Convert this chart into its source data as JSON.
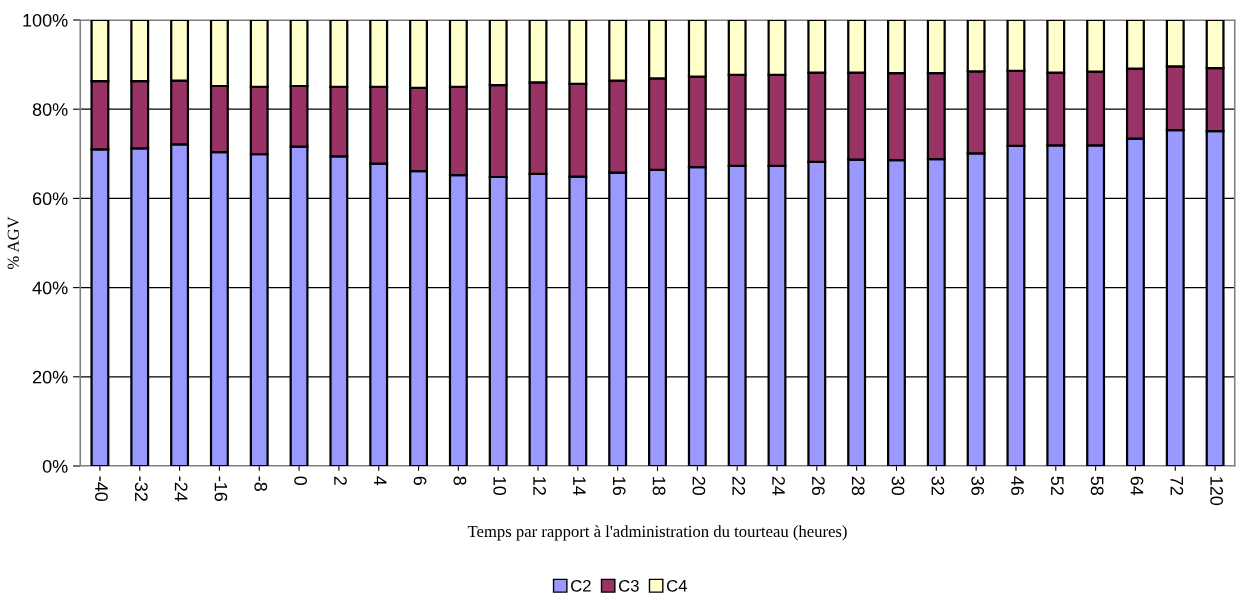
{
  "chart_data": {
    "type": "bar",
    "stacked": true,
    "xlabel": "Temps par rapport à l'administration du tourteau (heures)",
    "ylabel": "% AGV",
    "categories": [
      "-40",
      "-32",
      "-24",
      "-16",
      "-8",
      "0",
      "2",
      "4",
      "6",
      "8",
      "10",
      "12",
      "14",
      "16",
      "18",
      "20",
      "22",
      "24",
      "26",
      "28",
      "30",
      "32",
      "36",
      "46",
      "52",
      "58",
      "64",
      "72",
      "120"
    ],
    "series": [
      {
        "name": "C2",
        "color": "#9999ff",
        "values": [
          71.0,
          71.2,
          72.1,
          70.4,
          69.9,
          71.6,
          69.4,
          67.8,
          66.1,
          65.2,
          64.8,
          65.5,
          64.9,
          65.8,
          66.4,
          67.0,
          67.3,
          67.3,
          68.2,
          68.7,
          68.6,
          68.8,
          70.1,
          71.8,
          71.9,
          71.9,
          73.4,
          75.3,
          75.1
        ]
      },
      {
        "name": "C3",
        "color": "#993366",
        "values": [
          15.3,
          15.1,
          14.3,
          14.8,
          15.1,
          13.6,
          15.6,
          17.2,
          18.7,
          19.8,
          20.6,
          20.5,
          20.8,
          20.6,
          20.5,
          20.3,
          20.4,
          20.4,
          20.0,
          19.5,
          19.5,
          19.3,
          18.4,
          16.8,
          16.3,
          16.5,
          15.7,
          14.3,
          14.1
        ]
      },
      {
        "name": "C4",
        "color": "#ffffcc",
        "values": [
          13.7,
          13.7,
          13.6,
          14.8,
          15.0,
          14.8,
          15.0,
          15.0,
          15.2,
          15.0,
          14.6,
          14.0,
          14.3,
          13.6,
          13.1,
          12.7,
          12.3,
          12.3,
          11.8,
          11.8,
          11.9,
          11.9,
          11.5,
          11.4,
          11.8,
          11.6,
          10.9,
          10.4,
          10.8
        ]
      }
    ],
    "ylim": [
      0,
      100
    ],
    "yticks": [
      {
        "value": 0,
        "label": "0%"
      },
      {
        "value": 20,
        "label": "20%"
      },
      {
        "value": 40,
        "label": "40%"
      },
      {
        "value": 60,
        "label": "60%"
      },
      {
        "value": 80,
        "label": "80%"
      },
      {
        "value": 100,
        "label": "100%"
      }
    ],
    "grid": "y",
    "legend": "bottom"
  }
}
